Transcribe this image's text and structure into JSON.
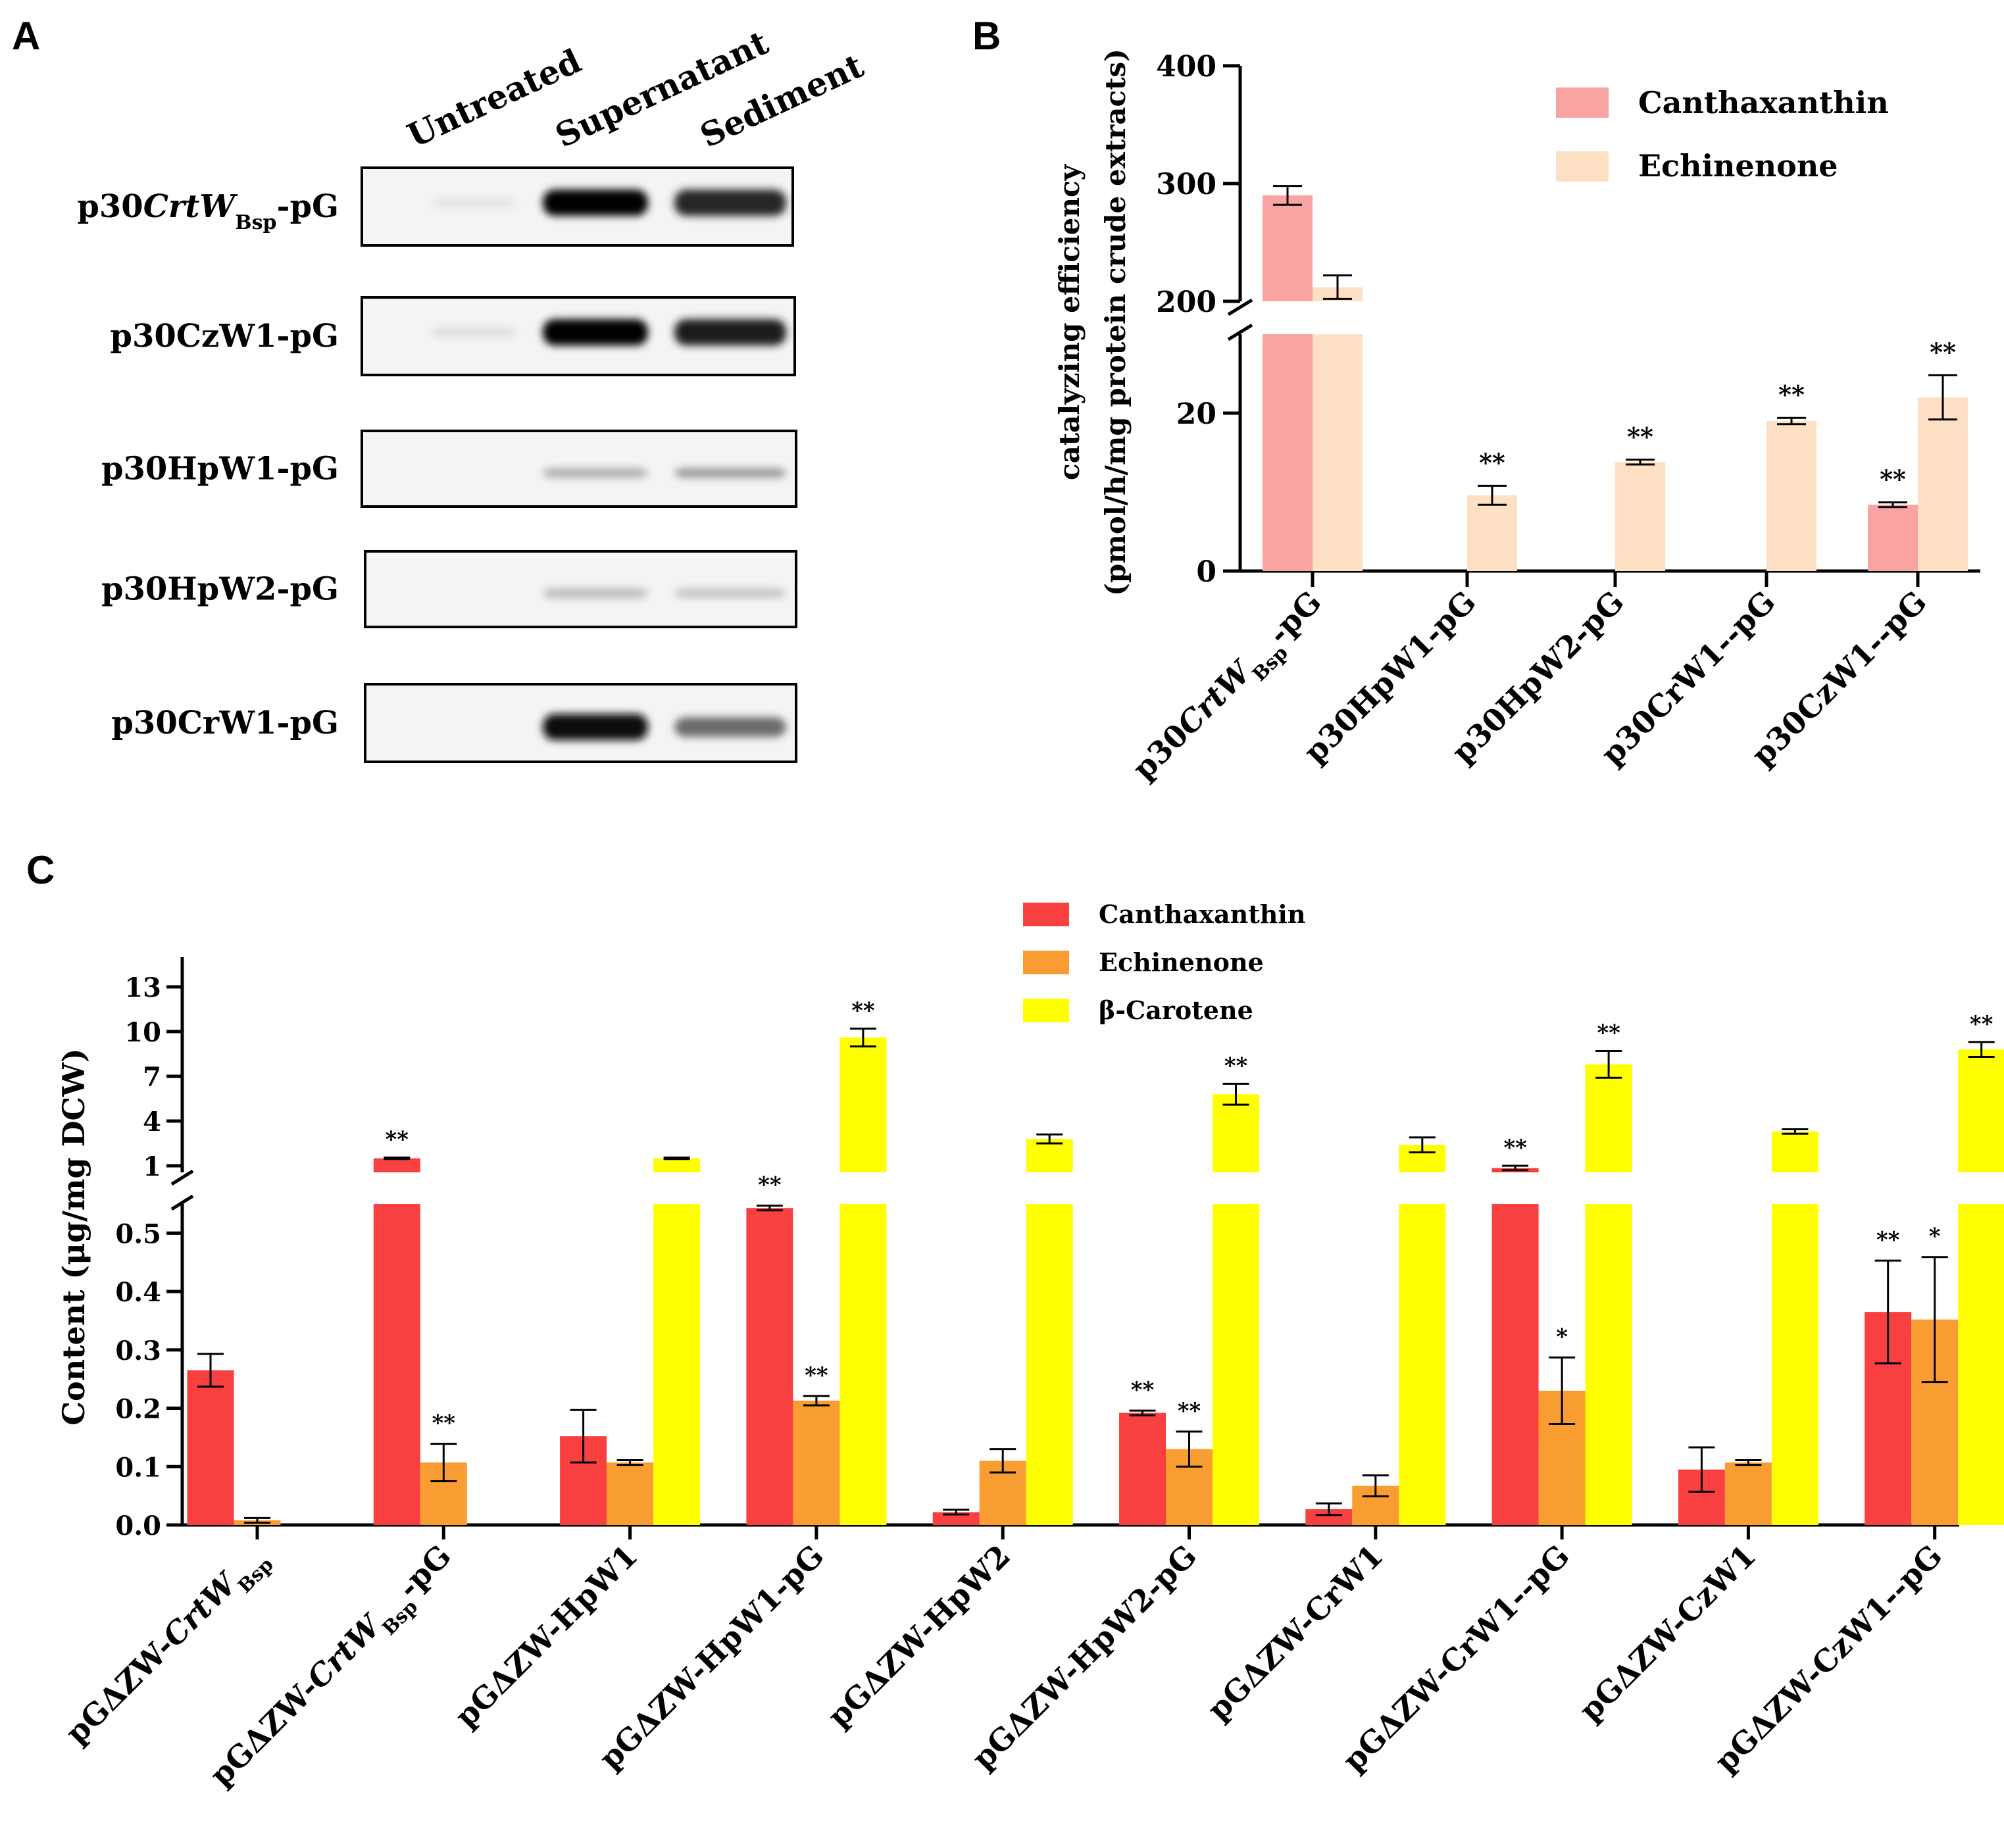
{
  "figure": {
    "panel_a_label": "A",
    "panel_b_label": "B",
    "panel_c_label": "C"
  },
  "panel_a": {
    "columns": [
      "Untreated",
      "Supernatant",
      "Sediment"
    ],
    "rows": [
      {
        "prefix": "p30",
        "italic": "CrtW",
        "sub": "Bsp",
        "suffix": "-pG",
        "bands": [
          0.04,
          1.0,
          0.85
        ]
      },
      {
        "prefix": "p30CzW1-pG",
        "italic": "",
        "sub": "",
        "suffix": "",
        "bands": [
          0.06,
          1.0,
          0.9
        ]
      },
      {
        "prefix": "p30HpW1-pG",
        "italic": "",
        "sub": "",
        "suffix": "",
        "bands": [
          0.0,
          0.28,
          0.38
        ]
      },
      {
        "prefix": "p30HpW2-pG",
        "italic": "",
        "sub": "",
        "suffix": "",
        "bands": [
          0.0,
          0.22,
          0.18
        ]
      },
      {
        "prefix": "p30CrW1-pG",
        "italic": "",
        "sub": "",
        "suffix": "",
        "bands": [
          0.0,
          0.95,
          0.55
        ]
      }
    ]
  },
  "chart_data": [
    {
      "id": "B",
      "type": "bar",
      "title": "",
      "ylabel_line1": "catalyzing efficiency",
      "ylabel_line2": "(pmol/h/mg protein crude extracts)",
      "broken_axis": {
        "lower": [
          0,
          30
        ],
        "upper": [
          200,
          400
        ]
      },
      "yticks_lower": [
        0,
        20
      ],
      "yticks_upper": [
        200,
        300,
        400
      ],
      "categories": [
        {
          "prefix": "p30",
          "italic": "CrtW",
          "sub": "Bsp",
          "suffix": "-pG"
        },
        {
          "prefix": "p30HpW1-pG",
          "italic": "",
          "sub": "",
          "suffix": ""
        },
        {
          "prefix": "p30HpW2-pG",
          "italic": "",
          "sub": "",
          "suffix": ""
        },
        {
          "prefix": "p30CrW1--pG",
          "italic": "",
          "sub": "",
          "suffix": ""
        },
        {
          "prefix": "p30CzW1--pG",
          "italic": "",
          "sub": "",
          "suffix": ""
        }
      ],
      "series": [
        {
          "name": "Canthaxanthin",
          "color": "#f9a3a3",
          "values": [
            290,
            0,
            0,
            0,
            8.4
          ],
          "errors": [
            8,
            0,
            0,
            0,
            0.3
          ],
          "sig": [
            "",
            "",
            "",
            "",
            "**"
          ]
        },
        {
          "name": "Echinenone",
          "color": "#fde0c4",
          "values": [
            212,
            9.6,
            13.8,
            19,
            22
          ],
          "errors": [
            10,
            1.2,
            0.3,
            0.4,
            2.8
          ],
          "sig": [
            "",
            "**",
            "**",
            "**",
            "**"
          ]
        }
      ],
      "legend": "top-right"
    },
    {
      "id": "C",
      "type": "bar",
      "title": "",
      "ylabel": "Content (μg/mg DCW)",
      "broken_axis": {
        "lower": [
          0,
          0.55
        ],
        "upper": [
          0,
          14.2
        ]
      },
      "yticks_lower": [
        "0.0",
        "0.1",
        "0.2",
        "0.3",
        "0.4",
        "0.5"
      ],
      "yticks_upper": [
        "1",
        "4",
        "7",
        "10",
        "13"
      ],
      "categories": [
        {
          "prefix": "pGΔZW-",
          "italic": "CrtW",
          "sub": "Bsp",
          "suffix": ""
        },
        {
          "prefix": "pGΔZW-",
          "italic": "CrtW",
          "sub": "Bsp",
          "suffix": "-pG"
        },
        {
          "prefix": "pGΔZW-HpW1",
          "italic": "",
          "sub": "",
          "suffix": ""
        },
        {
          "prefix": "pGΔZW-HpW1-pG",
          "italic": "",
          "sub": "",
          "suffix": ""
        },
        {
          "prefix": "pGΔZW-HpW2",
          "italic": "",
          "sub": "",
          "suffix": ""
        },
        {
          "prefix": "pGΔZW-HpW2-pG",
          "italic": "",
          "sub": "",
          "suffix": ""
        },
        {
          "prefix": "pGΔZW-CrW1",
          "italic": "",
          "sub": "",
          "suffix": ""
        },
        {
          "prefix": "pGΔZW-CrW1--pG",
          "italic": "",
          "sub": "",
          "suffix": ""
        },
        {
          "prefix": "pGΔZW-CzW1",
          "italic": "",
          "sub": "",
          "suffix": ""
        },
        {
          "prefix": "pGΔZW-CzW1--pG",
          "italic": "",
          "sub": "",
          "suffix": ""
        }
      ],
      "series": [
        {
          "name": "Canthaxanthin",
          "color": "#f94040",
          "values": [
            0.265,
            1.5,
            0.152,
            0.543,
            0.022,
            0.192,
            0.027,
            0.85,
            0.095,
            0.365
          ],
          "errors": [
            0.028,
            0.05,
            0.045,
            0.004,
            0.004,
            0.004,
            0.01,
            0.15,
            0.038,
            0.088
          ],
          "sig": [
            "",
            "**",
            "",
            "**",
            "",
            "**",
            "",
            "**",
            "",
            "**"
          ]
        },
        {
          "name": "Echinenone",
          "color": "#f99d33",
          "values": [
            0.008,
            0.107,
            0.107,
            0.213,
            0.11,
            0.13,
            0.067,
            0.23,
            0.107,
            0.352
          ],
          "errors": [
            0.004,
            0.032,
            0.004,
            0.008,
            0.02,
            0.03,
            0.018,
            0.057,
            0.004,
            0.107
          ],
          "sig": [
            "",
            "**",
            "",
            "**",
            "",
            "**",
            "",
            "*",
            "",
            "*"
          ]
        },
        {
          "name": "β-Carotene",
          "color": "#ffff00",
          "values": [
            null,
            null,
            1.5,
            9.6,
            2.8,
            5.8,
            2.4,
            7.8,
            3.3,
            8.8
          ],
          "errors": [
            0,
            0,
            0.05,
            0.6,
            0.3,
            0.7,
            0.5,
            0.9,
            0.15,
            0.5
          ],
          "sig": [
            "",
            "",
            "",
            "**",
            "",
            "**",
            "",
            "**",
            "",
            "**"
          ]
        }
      ],
      "legend": "top-center"
    }
  ]
}
